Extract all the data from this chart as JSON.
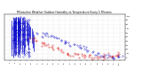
{
  "title": "Milwaukee Weather Outdoor Humidity vs Temperature Every 5 Minutes",
  "title_fontsize": 2.2,
  "background_color": "#ffffff",
  "plot_bg_color": "#ffffff",
  "grid_color": "#bbbbbb",
  "blue_color": "#0000cc",
  "red_color": "#dd0000",
  "xlim": [
    -5,
    105
  ],
  "ylim": [
    -5,
    105
  ],
  "figsize": [
    1.6,
    0.87
  ],
  "dpi": 100,
  "blue_left": {
    "x": [
      2,
      2,
      3,
      3,
      3,
      4,
      4,
      4,
      5,
      5,
      5,
      5,
      6,
      6,
      6,
      6,
      7,
      7,
      7,
      7,
      8,
      8,
      8,
      8,
      9,
      9,
      9,
      10,
      10,
      10,
      11,
      11,
      12,
      12,
      13,
      13,
      14,
      14,
      15,
      16,
      17,
      18,
      19,
      20,
      21,
      22
    ],
    "y_min": [
      5,
      20,
      2,
      30,
      60,
      10,
      40,
      70,
      5,
      25,
      55,
      80,
      8,
      35,
      65,
      90,
      3,
      30,
      60,
      85,
      10,
      40,
      70,
      95,
      5,
      50,
      80,
      20,
      60,
      90,
      15,
      70,
      30,
      80,
      10,
      60,
      25,
      75,
      40,
      30,
      20,
      50,
      45,
      35,
      25,
      15
    ],
    "y_max": [
      90,
      80,
      85,
      75,
      95,
      80,
      90,
      95,
      90,
      80,
      90,
      95,
      85,
      90,
      95,
      98,
      88,
      92,
      95,
      98,
      85,
      90,
      95,
      99,
      80,
      90,
      95,
      85,
      92,
      98,
      80,
      95,
      75,
      95,
      70,
      90,
      75,
      92,
      90,
      85,
      75,
      80,
      75,
      70,
      65,
      55
    ]
  },
  "blue_sparse_x": [
    25,
    28,
    30,
    32,
    35,
    38,
    40,
    43,
    45,
    48,
    50,
    52,
    55,
    58,
    60,
    63,
    65,
    68,
    70,
    73,
    75,
    78,
    80,
    83,
    85,
    88,
    90,
    93,
    95,
    98,
    100,
    102
  ],
  "blue_sparse_y": [
    60,
    58,
    55,
    62,
    57,
    53,
    50,
    48,
    45,
    42,
    40,
    38,
    35,
    32,
    30,
    28,
    25,
    22,
    20,
    18,
    15,
    12,
    10,
    8,
    6,
    5,
    4,
    3,
    2,
    2,
    2,
    3
  ],
  "red_sparse_x": [
    20,
    22,
    25,
    28,
    30,
    32,
    35,
    38,
    40,
    42,
    45,
    47,
    50,
    53,
    55,
    58,
    60,
    62,
    65,
    68,
    70,
    73,
    75,
    78,
    80,
    83,
    85,
    88,
    90,
    93,
    95,
    98,
    100
  ],
  "red_sparse_y": [
    45,
    42,
    40,
    38,
    35,
    33,
    30,
    28,
    25,
    23,
    20,
    18,
    15,
    13,
    12,
    10,
    9,
    8,
    7,
    6,
    5,
    4,
    3,
    3,
    2,
    2,
    2,
    3,
    4,
    5,
    6,
    7,
    8
  ]
}
